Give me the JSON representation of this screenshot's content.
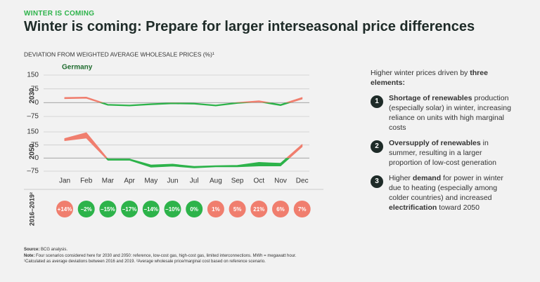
{
  "kicker": "WINTER IS COMING",
  "title": "Winter is coming: Prepare for larger interseasonal price differences",
  "y_axis_title": "DEVIATION FROM WEIGHTED AVERAGE WHOLESALE PRICES (%)¹",
  "chart_data": [
    {
      "type": "band",
      "subtitle": "Germany",
      "ylabel": "2030",
      "low": [
        22,
        24,
        -14,
        -18,
        -11,
        -6,
        -8,
        -18,
        -4,
        4,
        -16,
        20
      ],
      "high": [
        28,
        30,
        -9,
        -13,
        -6,
        -1,
        -3,
        -13,
        1,
        10,
        -10,
        28
      ],
      "ylim": [
        -75,
        150
      ],
      "yticks": [
        150,
        75,
        0,
        {
          "value": -75,
          "label": "–75"
        }
      ],
      "colors": {
        "positive": "#f07e6e",
        "negative": "#2db34a"
      }
    },
    {
      "type": "band",
      "ylabel": "2050",
      "categories": [
        "Jan",
        "Feb",
        "Mar",
        "Apr",
        "May",
        "Jun",
        "Jul",
        "Aug",
        "Sep",
        "Oct",
        "Nov",
        "Dec"
      ],
      "low": [
        100,
        115,
        -12,
        -12,
        -52,
        -46,
        -56,
        -50,
        -50,
        -45,
        -45,
        65
      ],
      "high": [
        112,
        145,
        -5,
        -5,
        -40,
        -35,
        -48,
        -44,
        -42,
        -25,
        -30,
        78
      ],
      "ylim": [
        -75,
        150
      ],
      "yticks": [
        150,
        75,
        0,
        {
          "value": -75,
          "label": "–75"
        }
      ],
      "colors": {
        "positive": "#f07e6e",
        "negative": "#2db34a"
      }
    },
    {
      "type": "dots",
      "ylabel": "2016–2019²",
      "values": [
        14,
        -2,
        -15,
        -17,
        -14,
        -10,
        0,
        1,
        5,
        21,
        6,
        7
      ],
      "value_labels": [
        "+14%",
        "–2%",
        "–15%",
        "–17%",
        "–14%",
        "–10%",
        "0%",
        "1%",
        "5%",
        "21%",
        "6%",
        "7%"
      ],
      "colors": {
        "positive": "#f07e6e",
        "negative": "#2db34a"
      }
    }
  ],
  "sidebar": {
    "intro": [
      {
        "t": "Higher winter prices driven by "
      },
      {
        "t": "three elements:",
        "b": true
      }
    ],
    "items": [
      {
        "number": "1",
        "parts": [
          {
            "t": "Shortage of renewables",
            "b": true
          },
          {
            "t": " production (especially solar) in winter, increasing reliance on units with high marginal costs"
          }
        ]
      },
      {
        "number": "2",
        "parts": [
          {
            "t": "Oversupply of renewables",
            "b": true
          },
          {
            "t": " in summer, resulting in a larger proportion of low-cost generation"
          }
        ]
      },
      {
        "number": "3",
        "parts": [
          {
            "t": "Higher "
          },
          {
            "t": "demand",
            "b": true
          },
          {
            "t": " for power in winter due to heating (especially among colder countries) and increased "
          },
          {
            "t": "electrification",
            "b": true
          },
          {
            "t": " toward 2050"
          }
        ]
      }
    ]
  },
  "footnotes": [
    [
      {
        "t": "Source:",
        "b": true
      },
      {
        "t": " BCG analysis."
      }
    ],
    [
      {
        "t": "Note:",
        "b": true
      },
      {
        "t": " Four scenarios considered here for 2030 and 2050: reference, low-cost gas, high-cost gas, limited interconnections. MWh = megawatt hour."
      }
    ],
    [
      {
        "t": "¹Calculated as average deviations between 2016 and 2019. ²Average wholesale price/marginal cost based on reference scenario."
      }
    ]
  ]
}
